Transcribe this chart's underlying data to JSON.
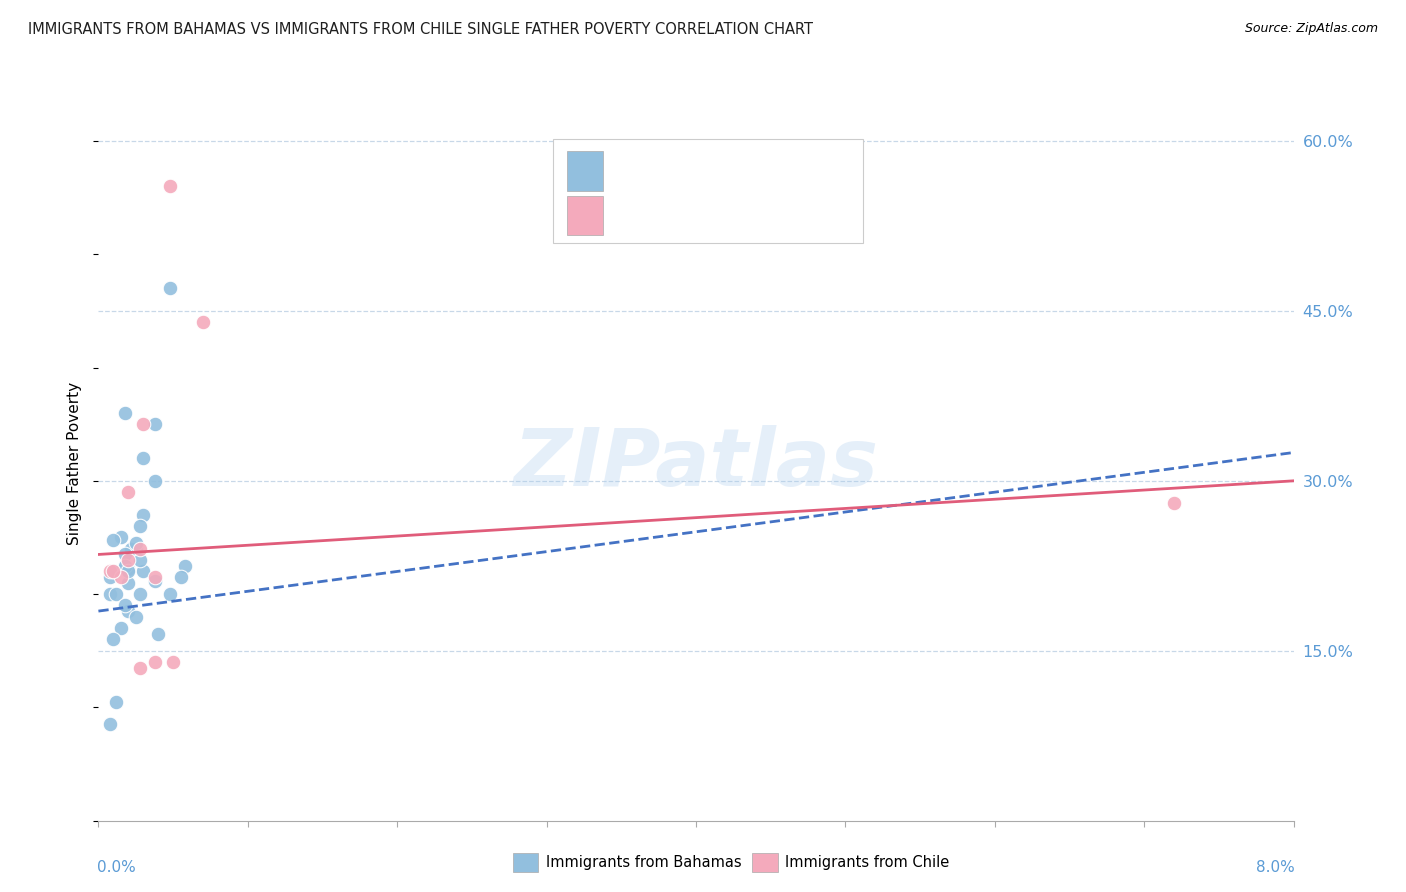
{
  "title": "IMMIGRANTS FROM BAHAMAS VS IMMIGRANTS FROM CHILE SINGLE FATHER POVERTY CORRELATION CHART",
  "source": "Source: ZipAtlas.com",
  "xmin": 0.0,
  "xmax": 0.08,
  "ymin": 0.0,
  "ymax": 0.63,
  "ylabel_ticks": [
    0.15,
    0.3,
    0.45,
    0.6
  ],
  "ylabel_labels": [
    "15.0%",
    "30.0%",
    "45.0%",
    "60.0%"
  ],
  "watermark": "ZIPatlas",
  "series1_color": "#92BFDE",
  "series2_color": "#F4AABC",
  "series1_name": "Immigrants from Bahamas",
  "series2_name": "Immigrants from Chile",
  "line1_color": "#4472C4",
  "line2_color": "#E05C7A",
  "grid_color": "#C8D8E8",
  "tick_color": "#5B9BD5",
  "title_color": "#1F1F1F",
  "bahamas_x": [
    0.0008,
    0.0015,
    0.0025,
    0.0018,
    0.001,
    0.003,
    0.0038,
    0.0048,
    0.003,
    0.0022,
    0.0012,
    0.002,
    0.0008,
    0.0018,
    0.0028,
    0.0038,
    0.0025,
    0.002,
    0.0012,
    0.0018,
    0.003,
    0.0038,
    0.0048,
    0.0058,
    0.0018,
    0.001,
    0.0028,
    0.0018,
    0.004,
    0.0008,
    0.0025,
    0.0015,
    0.001,
    0.002,
    0.0028,
    0.0055,
    0.002
  ],
  "bahamas_y": [
    0.215,
    0.25,
    0.24,
    0.225,
    0.22,
    0.27,
    0.35,
    0.47,
    0.22,
    0.24,
    0.105,
    0.185,
    0.2,
    0.235,
    0.26,
    0.212,
    0.245,
    0.222,
    0.2,
    0.225,
    0.32,
    0.3,
    0.2,
    0.225,
    0.36,
    0.248,
    0.23,
    0.19,
    0.165,
    0.085,
    0.18,
    0.17,
    0.16,
    0.21,
    0.2,
    0.215,
    0.22
  ],
  "chile_x": [
    0.0008,
    0.0015,
    0.001,
    0.002,
    0.0028,
    0.003,
    0.002,
    0.0038,
    0.0038,
    0.0028,
    0.005,
    0.0048,
    0.007,
    0.072
  ],
  "chile_y": [
    0.22,
    0.215,
    0.22,
    0.23,
    0.24,
    0.35,
    0.29,
    0.215,
    0.14,
    0.135,
    0.14,
    0.56,
    0.44,
    0.28
  ],
  "bahamas_line_x": [
    0.0,
    0.08
  ],
  "bahamas_line_y": [
    0.185,
    0.325
  ],
  "chile_line_x": [
    0.0,
    0.08
  ],
  "chile_line_y": [
    0.235,
    0.3
  ]
}
